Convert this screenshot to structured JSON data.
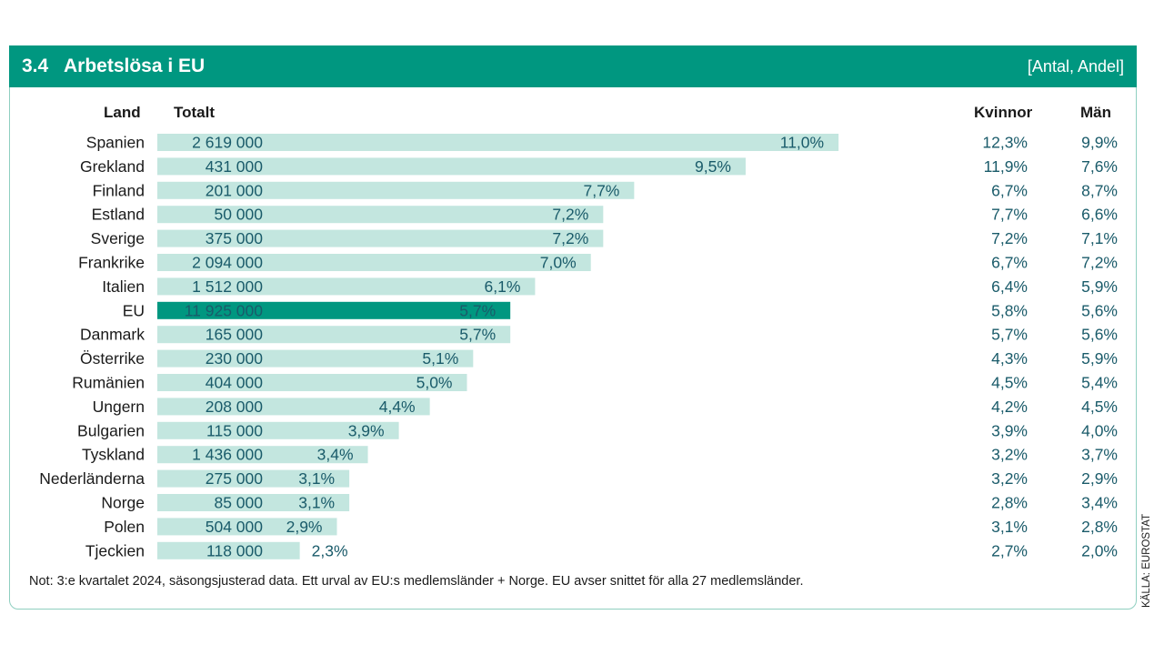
{
  "header": {
    "number": "3.4",
    "title": "Arbetslösa i EU",
    "unit": "[Antal, Andel]"
  },
  "columns": {
    "land": "Land",
    "totalt": "Totalt",
    "kvinnor": "Kvinnor",
    "man": "Män"
  },
  "colors": {
    "header": "#009780",
    "bar": "#c3e6df",
    "highlight_bar": "#009780",
    "value_text": "#1a5b6a"
  },
  "chart_data": {
    "type": "bar",
    "orientation": "horizontal",
    "categories": [
      "Spanien",
      "Grekland",
      "Finland",
      "Estland",
      "Sverige",
      "Frankrike",
      "Italien",
      "EU",
      "Danmark",
      "Österrike",
      "Rumänien",
      "Ungern",
      "Bulgarien",
      "Tyskland",
      "Nederländerna",
      "Norge",
      "Polen",
      "Tjeckien"
    ],
    "highlight": "EU",
    "counts": [
      "2 619 000",
      "431 000",
      "201 000",
      "50 000",
      "375 000",
      "2 094 000",
      "1 512 000",
      "11 925 000",
      "165 000",
      "230 000",
      "404 000",
      "208 000",
      "115 000",
      "1 436 000",
      "275 000",
      "85 000",
      "504 000",
      "118 000"
    ],
    "series": [
      {
        "name": "Totalt",
        "values": [
          11.0,
          9.5,
          7.7,
          7.2,
          7.2,
          7.0,
          6.1,
          5.7,
          5.7,
          5.1,
          5.0,
          4.4,
          3.9,
          3.4,
          3.1,
          3.1,
          2.9,
          2.3
        ],
        "labels": [
          "11,0%",
          "9,5%",
          "7,7%",
          "7,2%",
          "7,2%",
          "7,0%",
          "6,1%",
          "5,7%",
          "5,7%",
          "5,1%",
          "5,0%",
          "4,4%",
          "3,9%",
          "3,4%",
          "3,1%",
          "3,1%",
          "2,9%",
          "2,3%"
        ]
      },
      {
        "name": "Kvinnor",
        "values": [
          12.3,
          11.9,
          6.7,
          7.7,
          7.2,
          6.7,
          6.4,
          5.8,
          5.7,
          4.3,
          4.5,
          4.2,
          3.9,
          3.2,
          3.2,
          2.8,
          3.1,
          2.7
        ],
        "labels": [
          "12,3%",
          "11,9%",
          "6,7%",
          "7,7%",
          "7,2%",
          "6,7%",
          "6,4%",
          "5,8%",
          "5,7%",
          "4,3%",
          "4,5%",
          "4,2%",
          "3,9%",
          "3,2%",
          "3,2%",
          "2,8%",
          "3,1%",
          "2,7%"
        ]
      },
      {
        "name": "Män",
        "values": [
          9.9,
          7.6,
          8.7,
          6.6,
          7.1,
          7.2,
          5.9,
          5.6,
          5.6,
          5.9,
          5.4,
          4.5,
          4.0,
          3.7,
          2.9,
          3.4,
          2.8,
          2.0
        ],
        "labels": [
          "9,9%",
          "7,6%",
          "8,7%",
          "6,6%",
          "7,1%",
          "7,2%",
          "5,9%",
          "5,6%",
          "5,6%",
          "5,9%",
          "5,4%",
          "4,5%",
          "4,0%",
          "3,7%",
          "2,9%",
          "3,4%",
          "2,8%",
          "2,0%"
        ]
      }
    ]
  },
  "note": "Not: 3:e kvartalet 2024, säsongsjusterad data. Ett urval av EU:s medlemsländer + Norge. EU avser snittet för alla 27 medlemsländer.",
  "source": "KÄLLA: EUROSTAT"
}
